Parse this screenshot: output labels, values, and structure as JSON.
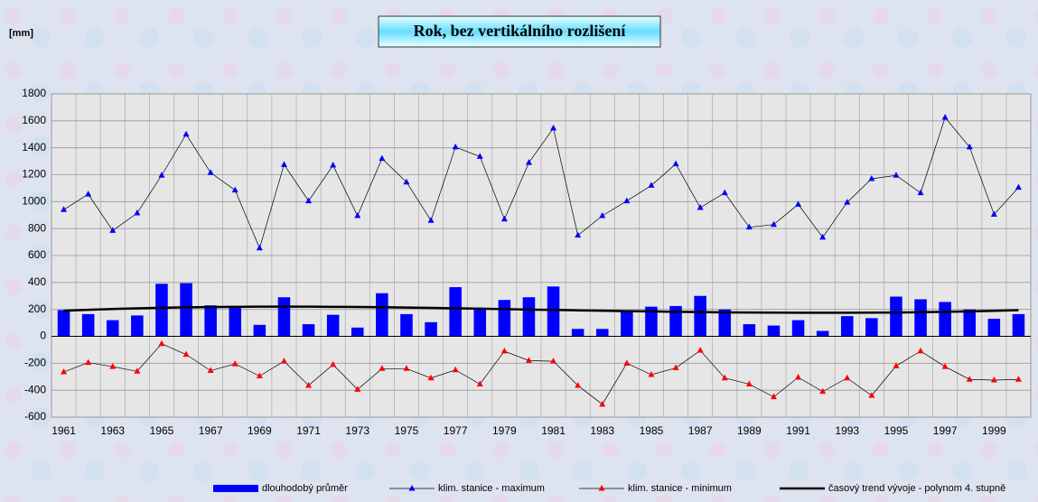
{
  "chart_data": {
    "type": "bar",
    "title": "Rok, bez vertikálního rozlišení",
    "y_label": "[mm]",
    "categories": [
      "1961",
      null,
      "1963",
      null,
      "1965",
      null,
      "1967",
      null,
      "1969",
      null,
      "1971",
      null,
      "1973",
      null,
      "1975",
      null,
      "1977",
      null,
      "1979",
      null,
      "1981",
      null,
      "1983",
      null,
      "1985",
      null,
      "1987",
      null,
      "1989",
      null,
      "1991",
      null,
      "1993",
      null,
      "1995",
      null,
      "1997",
      null,
      "1999",
      null
    ],
    "series": [
      {
        "name": "dlouhodobý průměr",
        "type": "bar",
        "color": "#0000ff",
        "values": [
          195,
          165,
          120,
          155,
          390,
          395,
          230,
          225,
          85,
          290,
          90,
          160,
          65,
          320,
          165,
          105,
          365,
          210,
          270,
          290,
          370,
          55,
          55,
          180,
          220,
          225,
          300,
          200,
          90,
          80,
          120,
          40,
          150,
          135,
          295,
          275,
          255,
          200,
          130,
          165
        ]
      },
      {
        "name": "klim. stanice - maximum",
        "type": "line",
        "color": "#0000ff",
        "marker": "triangle",
        "values": [
          940,
          1055,
          785,
          915,
          1195,
          1500,
          1215,
          1085,
          655,
          1275,
          1005,
          1270,
          895,
          1320,
          1145,
          860,
          1405,
          1335,
          870,
          1290,
          1545,
          750,
          895,
          1005,
          1120,
          1280,
          955,
          1065,
          810,
          830,
          980,
          735,
          995,
          1170,
          1195,
          1065,
          1625,
          1405,
          905,
          1105
        ]
      },
      {
        "name": "klim. stanice - minimum",
        "type": "line",
        "color": "#ff0000",
        "marker": "triangle",
        "values": [
          -265,
          -195,
          -225,
          -260,
          -55,
          -135,
          -255,
          -205,
          -295,
          -185,
          -365,
          -210,
          -395,
          -240,
          -240,
          -310,
          -250,
          -355,
          -110,
          -180,
          -185,
          -365,
          -505,
          -200,
          -285,
          -235,
          -105,
          -310,
          -355,
          -450,
          -305,
          -410,
          -310,
          -440,
          -220,
          -110,
          -225,
          -320,
          -325,
          -320
        ]
      },
      {
        "name": "časový trend vývoje - polynom 4. stupně",
        "type": "trend",
        "color": "#000000",
        "values": [
          190,
          197,
          203,
          208,
          212,
          215,
          217,
          219,
          220,
          220,
          220,
          219,
          218,
          216,
          214,
          211,
          208,
          205,
          202,
          199,
          196,
          193,
          190,
          187,
          185,
          182,
          180,
          178,
          177,
          176,
          175,
          175,
          175,
          176,
          177,
          179,
          182,
          185,
          189,
          194
        ]
      }
    ],
    "ylim": [
      -600,
      1800
    ],
    "yticks": [
      -600,
      -400,
      -200,
      0,
      200,
      400,
      600,
      800,
      1000,
      1200,
      1400,
      1600,
      1800
    ],
    "grid": true,
    "legend": "bottom"
  }
}
